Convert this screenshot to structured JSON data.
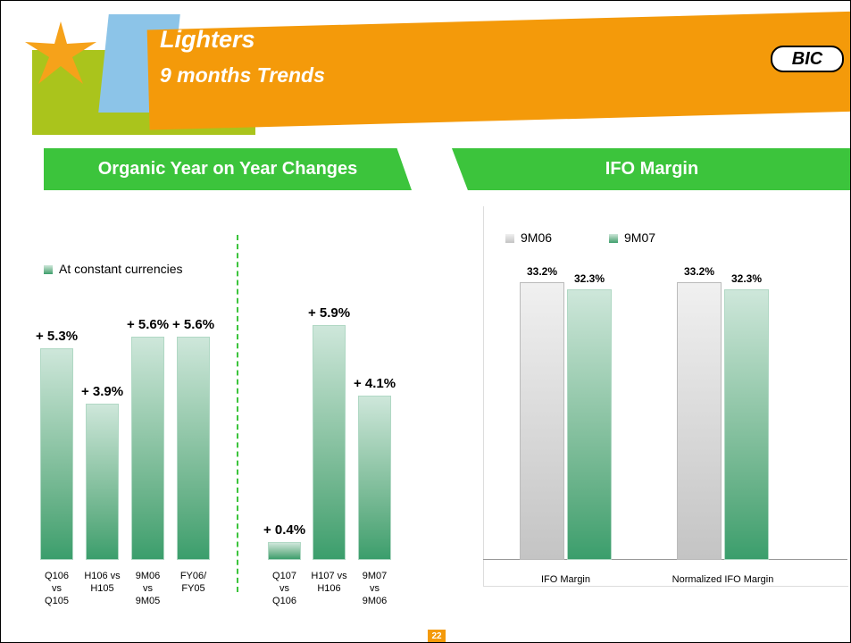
{
  "header": {
    "title": "Lighters",
    "subtitle": "9 months Trends",
    "logo": "BIC",
    "page_number": "22"
  },
  "chart_data": [
    {
      "type": "bar",
      "title": "Organic Year on Year Changes",
      "categories": [
        "Q106\nvs\nQ105",
        "H106 vs\nH105",
        "9M06\nvs\n9M05",
        "FY06/\nFY05",
        "Q107\nvs\nQ106",
        "H107 vs\nH106",
        "9M07\nvs\n9M06"
      ],
      "series": [
        {
          "name": "At constant currencies",
          "color": "#3a9e6c",
          "values": [
            5.3,
            3.9,
            5.6,
            5.6,
            0.4,
            5.9,
            4.1
          ],
          "value_labels": [
            "+ 5.3%",
            "+ 3.9%",
            "+ 5.6%",
            "+ 5.6%",
            "+ 0.4%",
            "+ 5.9%",
            "+ 4.1%"
          ]
        }
      ],
      "ylim": [
        0,
        6.5
      ]
    },
    {
      "type": "grouped-bar",
      "title": "IFO Margin",
      "categories": [
        "IFO Margin",
        "Normalized IFO Margin"
      ],
      "series": [
        {
          "name": "9M06",
          "color": "#c4c4c4",
          "values": [
            33.2,
            33.2
          ],
          "value_labels": [
            "33.2%",
            "33.2%"
          ]
        },
        {
          "name": "9M07",
          "color": "#3a9e6c",
          "values": [
            32.3,
            32.3
          ],
          "value_labels": [
            "32.3%",
            "32.3%"
          ]
        }
      ],
      "ylim": [
        0,
        35
      ]
    }
  ]
}
